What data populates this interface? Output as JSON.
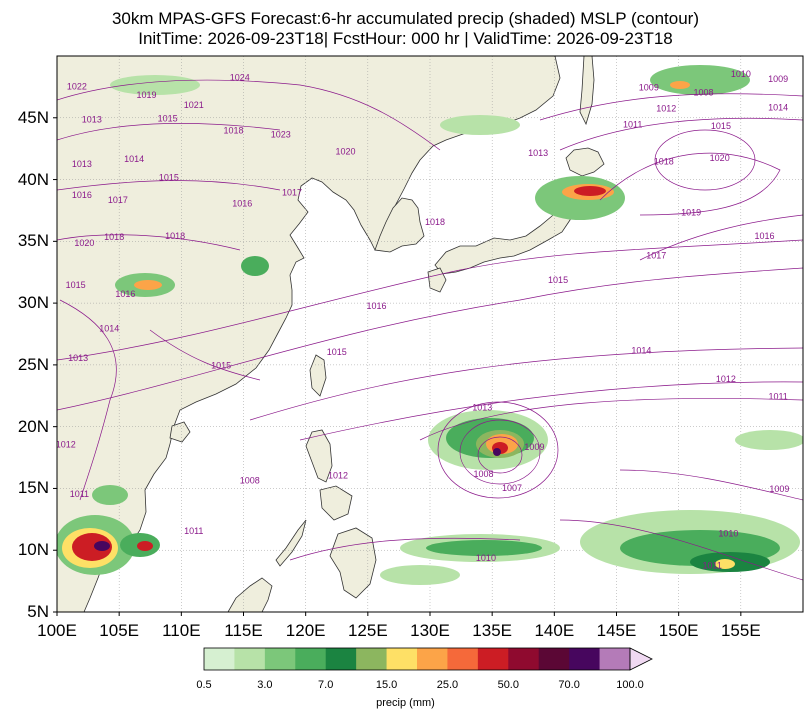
{
  "title": {
    "line1": "30km MPAS-GFS Forecast:6-hr accumulated precip (shaded) MSLP (contour)",
    "line2": "InitTime: 2026-09-23T18| FcstHour: 000 hr | ValidTime: 2026-09-23T18"
  },
  "map": {
    "extent": {
      "lon": [
        100,
        160
      ],
      "lat": [
        5,
        50
      ]
    },
    "lat_ticks": [
      {
        "v": 5,
        "label": "5N"
      },
      {
        "v": 10,
        "label": "10N"
      },
      {
        "v": 15,
        "label": "15N"
      },
      {
        "v": 20,
        "label": "20N"
      },
      {
        "v": 25,
        "label": "25N"
      },
      {
        "v": 30,
        "label": "30N"
      },
      {
        "v": 35,
        "label": "35N"
      },
      {
        "v": 40,
        "label": "40N"
      },
      {
        "v": 45,
        "label": "45N"
      }
    ],
    "lon_ticks": [
      {
        "v": 100,
        "label": "100E"
      },
      {
        "v": 105,
        "label": "105E"
      },
      {
        "v": 110,
        "label": "110E"
      },
      {
        "v": 115,
        "label": "115E"
      },
      {
        "v": 120,
        "label": "120E"
      },
      {
        "v": 125,
        "label": "125E"
      },
      {
        "v": 130,
        "label": "130E"
      },
      {
        "v": 135,
        "label": "135E"
      },
      {
        "v": 140,
        "label": "140E"
      },
      {
        "v": 145,
        "label": "145E"
      },
      {
        "v": 150,
        "label": "150E"
      },
      {
        "v": 155,
        "label": "155E"
      }
    ],
    "land_color": "#efeedd",
    "ocean_color": "#ffffff",
    "contour_color": "#8b1a8b",
    "isobar_labels": [
      {
        "text": "1024",
        "lon": 114.7,
        "lat": 48.2
      },
      {
        "text": "1022",
        "lon": 101.6,
        "lat": 47.5
      },
      {
        "text": "1019",
        "lon": 107.2,
        "lat": 46.8
      },
      {
        "text": "1021",
        "lon": 111,
        "lat": 46
      },
      {
        "text": "1015",
        "lon": 108.9,
        "lat": 44.9
      },
      {
        "text": "1018",
        "lon": 114.2,
        "lat": 43.9
      },
      {
        "text": "1023",
        "lon": 118,
        "lat": 43.6
      },
      {
        "text": "1020",
        "lon": 123.2,
        "lat": 42.2
      },
      {
        "text": "1013",
        "lon": 102.8,
        "lat": 44.8
      },
      {
        "text": "1014",
        "lon": 106.2,
        "lat": 41.6
      },
      {
        "text": "1015",
        "lon": 109,
        "lat": 40.1
      },
      {
        "text": "1013",
        "lon": 102,
        "lat": 41.2
      },
      {
        "text": "1016",
        "lon": 102,
        "lat": 38.7
      },
      {
        "text": "1017",
        "lon": 104.9,
        "lat": 38.3
      },
      {
        "text": "1017",
        "lon": 118.9,
        "lat": 38.9
      },
      {
        "text": "1018",
        "lon": 104.6,
        "lat": 35.3
      },
      {
        "text": "1018",
        "lon": 109.5,
        "lat": 35.4
      },
      {
        "text": "1018",
        "lon": 130.4,
        "lat": 36.5
      },
      {
        "text": "1020",
        "lon": 102.2,
        "lat": 34.8
      },
      {
        "text": "1015",
        "lon": 101.5,
        "lat": 31.4
      },
      {
        "text": "1016",
        "lon": 105.5,
        "lat": 30.7
      },
      {
        "text": "1014",
        "lon": 104.2,
        "lat": 27.9
      },
      {
        "text": "1016",
        "lon": 125.7,
        "lat": 29.7
      },
      {
        "text": "1015",
        "lon": 122.5,
        "lat": 26
      },
      {
        "text": "1015",
        "lon": 113.2,
        "lat": 24.9
      },
      {
        "text": "1013",
        "lon": 101.7,
        "lat": 25.5
      },
      {
        "text": "1016",
        "lon": 114.9,
        "lat": 38
      },
      {
        "text": "1012",
        "lon": 100.7,
        "lat": 18.5
      },
      {
        "text": "1008",
        "lon": 115.5,
        "lat": 15.6
      },
      {
        "text": "1012",
        "lon": 122.6,
        "lat": 16
      },
      {
        "text": "1011",
        "lon": 111,
        "lat": 11.5
      },
      {
        "text": "1011",
        "lon": 101.8,
        "lat": 14.5
      },
      {
        "text": "1009",
        "lon": 147.6,
        "lat": 47.4
      },
      {
        "text": "1010",
        "lon": 155,
        "lat": 48.5
      },
      {
        "text": "1009",
        "lon": 158,
        "lat": 48.1
      },
      {
        "text": "1008",
        "lon": 152,
        "lat": 47
      },
      {
        "text": "1012",
        "lon": 149,
        "lat": 45.7
      },
      {
        "text": "1011",
        "lon": 146.3,
        "lat": 44.4
      },
      {
        "text": "1014",
        "lon": 158,
        "lat": 45.8
      },
      {
        "text": "1015",
        "lon": 153.4,
        "lat": 44.3
      },
      {
        "text": "1013",
        "lon": 138.7,
        "lat": 42.1
      },
      {
        "text": "1018",
        "lon": 148.8,
        "lat": 41.4
      },
      {
        "text": "1020",
        "lon": 153.3,
        "lat": 41.7
      },
      {
        "text": "1019",
        "lon": 151,
        "lat": 37.3
      },
      {
        "text": "1016",
        "lon": 156.9,
        "lat": 35.4
      },
      {
        "text": "1017",
        "lon": 148.2,
        "lat": 33.8
      },
      {
        "text": "1015",
        "lon": 140.3,
        "lat": 31.8
      },
      {
        "text": "1014",
        "lon": 147,
        "lat": 26.1
      },
      {
        "text": "1012",
        "lon": 153.8,
        "lat": 23.8
      },
      {
        "text": "1011",
        "lon": 158,
        "lat": 22.4
      },
      {
        "text": "1013",
        "lon": 134.2,
        "lat": 21.5
      },
      {
        "text": "1009",
        "lon": 138.4,
        "lat": 18.3
      },
      {
        "text": "1008",
        "lon": 134.3,
        "lat": 16.1
      },
      {
        "text": "1007",
        "lon": 136.6,
        "lat": 15
      },
      {
        "text": "1009",
        "lon": 158.1,
        "lat": 14.9
      },
      {
        "text": "1010",
        "lon": 154,
        "lat": 11.3
      },
      {
        "text": "1011",
        "lon": 152.7,
        "lat": 8.7
      },
      {
        "text": "1010",
        "lon": 134.5,
        "lat": 9.3
      }
    ]
  },
  "colorbar": {
    "colors": [
      "#d6f0d1",
      "#b7e2a8",
      "#7cc77a",
      "#4aad5c",
      "#1b8441",
      "#8cb65f",
      "#fee066",
      "#fca448",
      "#f5693a",
      "#cc1d24",
      "#8f0a2f",
      "#5b0735",
      "#47065e",
      "#b47bb8"
    ],
    "extend_color": "#f0d9f2",
    "ticks": [
      "0.5",
      "3.0",
      "7.0",
      "15.0",
      "25.0",
      "50.0",
      "70.0",
      "100.0"
    ],
    "label": "precip (mm)"
  }
}
